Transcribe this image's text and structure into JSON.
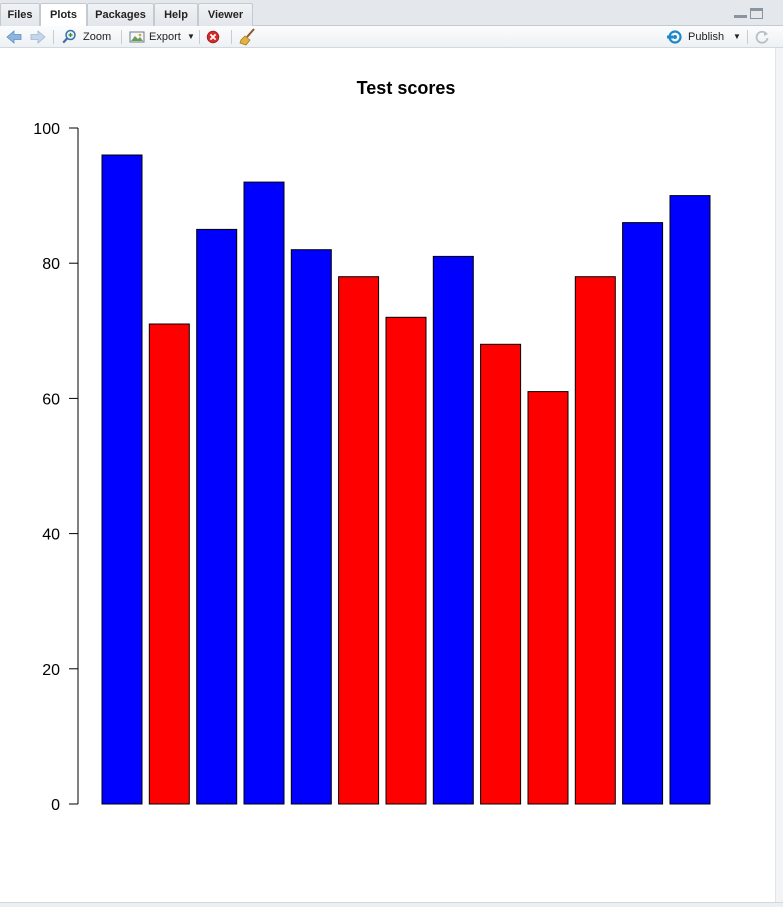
{
  "tabs": [
    {
      "label": "Files"
    },
    {
      "label": "Plots"
    },
    {
      "label": "Packages"
    },
    {
      "label": "Help"
    },
    {
      "label": "Viewer"
    }
  ],
  "toolbar": {
    "zoom_label": "Zoom",
    "export_label": "Export",
    "publish_label": "Publish"
  },
  "icons": {
    "back": "arrow-left-icon",
    "forward": "arrow-right-icon",
    "zoom": "magnifier-icon",
    "export": "export-image-icon",
    "remove": "remove-plot-icon",
    "clear": "broom-icon",
    "publish": "publish-icon",
    "refresh": "refresh-icon"
  },
  "colors": {
    "accent_blue": "#0000ff",
    "accent_red": "#ff0000"
  },
  "chart_data": {
    "type": "bar",
    "title": "Test scores",
    "xlabel": "",
    "ylabel": "",
    "ylim": [
      0,
      100
    ],
    "yticks": [
      0,
      20,
      40,
      60,
      80,
      100
    ],
    "values": [
      96,
      71,
      85,
      92,
      82,
      78,
      72,
      81,
      68,
      61,
      78,
      86,
      90
    ],
    "colors": [
      "#0000ff",
      "#ff0000",
      "#0000ff",
      "#0000ff",
      "#0000ff",
      "#ff0000",
      "#ff0000",
      "#0000ff",
      "#ff0000",
      "#ff0000",
      "#ff0000",
      "#0000ff",
      "#0000ff"
    ],
    "grid": false,
    "legend": "none"
  }
}
